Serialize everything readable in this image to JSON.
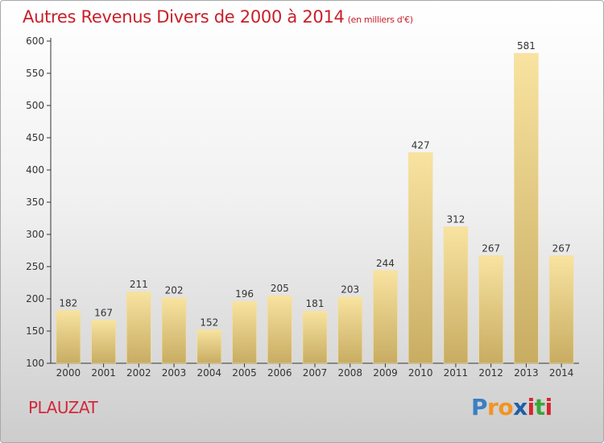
{
  "title": "Autres Revenus Divers de 2000 à 2014",
  "subtitle": "(en milliers d'€)",
  "commune": "PLAUZAT",
  "logo": {
    "letters": [
      "P",
      "r",
      "o",
      "x",
      "i",
      "t",
      "i"
    ],
    "colors": [
      "#3a7fc4",
      "#f29422",
      "#f29422",
      "#1f5fa8",
      "#d7252f",
      "#3aa63a",
      "#d7252f"
    ]
  },
  "colors": {
    "bar_light": "#f7e3a0",
    "bar_dark": "#c9ad64",
    "title": "#c8202a",
    "axis": "#333333",
    "grid": "#d0d0d0"
  },
  "chart_data": {
    "type": "bar",
    "title": "Autres Revenus Divers de 2000 à 2014",
    "subtitle": "(en milliers d'€)",
    "categories": [
      "2000",
      "2001",
      "2002",
      "2003",
      "2004",
      "2005",
      "2006",
      "2007",
      "2008",
      "2009",
      "2010",
      "2011",
      "2012",
      "2013",
      "2014"
    ],
    "values": [
      182,
      167,
      211,
      202,
      152,
      196,
      205,
      181,
      203,
      244,
      427,
      312,
      267,
      581,
      267
    ],
    "ylim": [
      100,
      600
    ],
    "yticks": [
      100,
      150,
      200,
      250,
      300,
      350,
      400,
      450,
      500,
      550,
      600
    ],
    "xlabel": "",
    "ylabel": "",
    "grid": false,
    "legend": "none"
  }
}
